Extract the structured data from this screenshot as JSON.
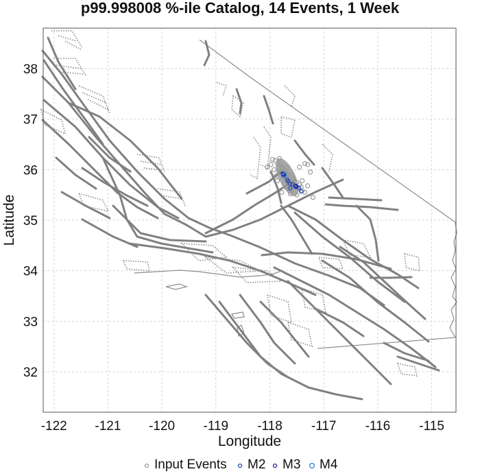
{
  "chart_data": {
    "type": "scatter",
    "title": "p99.998008 %-ile Catalog, 14 Events, 1 Week",
    "xlabel": "Longitude",
    "ylabel": "Latitude",
    "xlim": [
      -122.2,
      -114.55
    ],
    "ylim": [
      31.2,
      38.8
    ],
    "x_ticks": [
      -122,
      -121,
      -120,
      -119,
      -118,
      -117,
      -116,
      -115
    ],
    "y_ticks": [
      32,
      33,
      34,
      35,
      36,
      37,
      38
    ],
    "x_tick_labels": [
      "-122",
      "-121",
      "-120",
      "-119",
      "-118",
      "-117",
      "-116",
      "-115"
    ],
    "y_tick_labels": [
      "32",
      "33",
      "34",
      "35",
      "36",
      "37",
      "38"
    ],
    "grid": true,
    "legend_position": "bottom",
    "legend": [
      {
        "label": "Input Events",
        "color": "#9a9a9a"
      },
      {
        "label": "M2",
        "color": "#1f3fb3"
      },
      {
        "label": "M3",
        "color": "#1a1aa0"
      },
      {
        "label": "M4",
        "color": "#2a7fd4"
      }
    ],
    "series": [
      {
        "name": "Input Events",
        "color": "#9a9a9a",
        "points": [
          [
            -117.85,
            36.12
          ],
          [
            -117.78,
            36.05
          ],
          [
            -117.74,
            35.98
          ],
          [
            -117.72,
            35.92
          ],
          [
            -117.7,
            35.88
          ],
          [
            -117.68,
            35.84
          ],
          [
            -117.66,
            35.8
          ],
          [
            -117.62,
            35.76
          ],
          [
            -117.58,
            35.73
          ],
          [
            -117.55,
            35.7
          ],
          [
            -117.8,
            36.1
          ],
          [
            -117.76,
            36.02
          ],
          [
            -117.71,
            35.95
          ],
          [
            -117.69,
            35.9
          ],
          [
            -117.64,
            35.78
          ],
          [
            -117.6,
            35.72
          ],
          [
            -117.52,
            35.66
          ],
          [
            -117.48,
            35.62
          ],
          [
            -117.75,
            35.85
          ],
          [
            -117.82,
            35.95
          ],
          [
            -117.9,
            36.18
          ],
          [
            -117.95,
            36.2
          ],
          [
            -117.4,
            35.58
          ],
          [
            -117.35,
            35.55
          ],
          [
            -117.65,
            35.62
          ],
          [
            -117.58,
            35.6
          ],
          [
            -117.45,
            35.7
          ],
          [
            -117.3,
            35.68
          ],
          [
            -117.5,
            35.75
          ],
          [
            -117.7,
            35.65
          ],
          [
            -117.92,
            36.0
          ],
          [
            -117.88,
            35.88
          ],
          [
            -118.05,
            36.05
          ],
          [
            -117.82,
            36.22
          ],
          [
            -117.4,
            35.78
          ],
          [
            -117.35,
            36.12
          ],
          [
            -117.25,
            35.95
          ],
          [
            -117.62,
            35.52
          ],
          [
            -117.78,
            35.55
          ],
          [
            -117.2,
            35.45
          ],
          [
            -117.98,
            36.1
          ],
          [
            -117.45,
            36.05
          ],
          [
            -117.3,
            36.1
          ],
          [
            -117.5,
            35.5
          ],
          [
            -117.68,
            36.05
          ],
          [
            -117.56,
            35.82
          ],
          [
            -117.74,
            35.72
          ],
          [
            -117.86,
            35.78
          ],
          [
            -117.42,
            35.66
          ],
          [
            -117.6,
            35.9
          ]
        ]
      },
      {
        "name": "M2",
        "color": "#1f3fb3",
        "points": [
          [
            -117.76,
            35.92
          ],
          [
            -117.74,
            35.9
          ],
          [
            -117.63,
            35.72
          ],
          [
            -117.58,
            35.71
          ],
          [
            -117.66,
            35.77
          ],
          [
            -117.53,
            35.68
          ],
          [
            -117.5,
            35.66
          ],
          [
            -117.46,
            35.64
          ],
          [
            -117.42,
            35.57
          ],
          [
            -117.62,
            35.63
          ],
          [
            -117.68,
            35.8
          ]
        ]
      },
      {
        "name": "M3",
        "color": "#1a1aa0",
        "points": [
          [
            -117.75,
            35.91
          ],
          [
            -117.52,
            35.67
          ]
        ]
      },
      {
        "name": "M4",
        "color": "#2a7fd4",
        "points": [
          [
            -117.74,
            35.89
          ]
        ]
      }
    ]
  }
}
